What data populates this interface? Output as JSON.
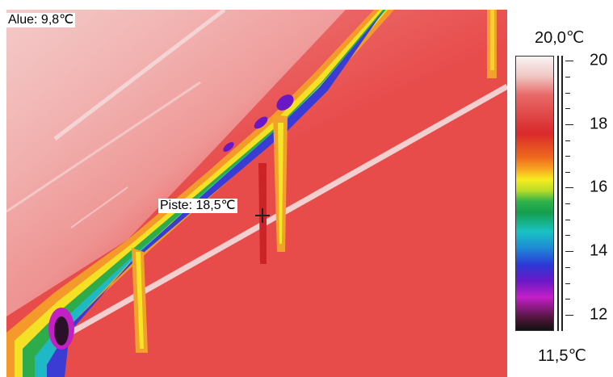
{
  "measurements": {
    "area": "Alue: 9,8℃",
    "spot": "Piste: 18,5℃"
  },
  "scale": {
    "max": "20,0℃",
    "min": "11,5℃",
    "tick_labels": [
      "20",
      "18",
      "16",
      "14",
      "12"
    ]
  },
  "colors": {
    "thermal_base": "#e74b4a",
    "hot_edge": "#d9292b",
    "cold_core": "#101010"
  }
}
